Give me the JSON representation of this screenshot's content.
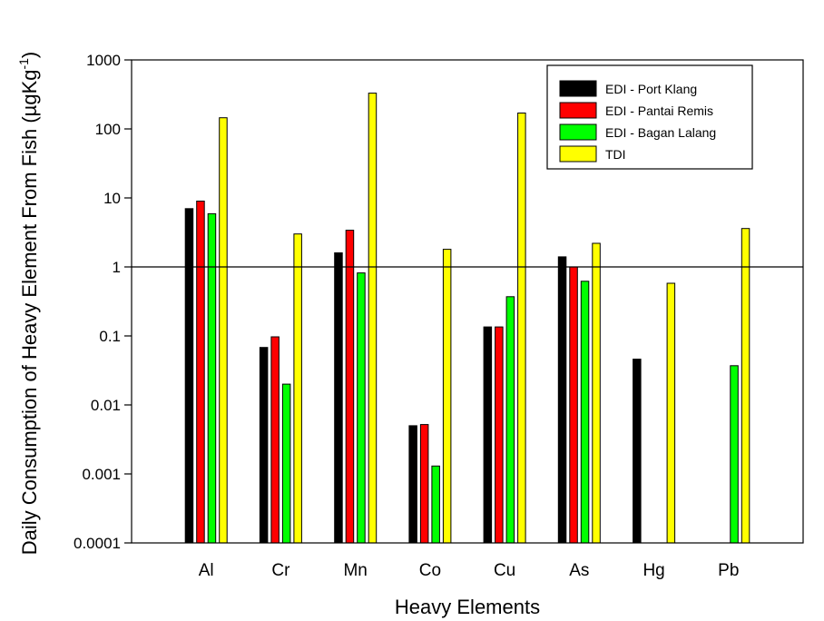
{
  "chart_data": {
    "type": "bar",
    "yscale": "log",
    "ylim": [
      0.0001,
      1000
    ],
    "yticks": [
      "0.0001",
      "0.001",
      "0.01",
      "0.1",
      "1",
      "10",
      "100",
      "1000"
    ],
    "reference_line_y": 1,
    "categories": [
      "Al",
      "Cr",
      "Mn",
      "Co",
      "Cu",
      "As",
      "Hg",
      "Pb"
    ],
    "xlabel": "Heavy Elements",
    "ylabel_main": "Daily Consumption of Heavy Element From Fish (µgKg",
    "ylabel_sup": "-1",
    "ylabel_close": ")",
    "legend_position": "top-right",
    "series": [
      {
        "name": "EDI - Port Klang",
        "color": "#000000",
        "values": [
          7,
          0.068,
          1.6,
          0.005,
          0.135,
          1.4,
          0.046,
          null
        ]
      },
      {
        "name": "EDI - Pantai Remis",
        "color": "#ff0000",
        "values": [
          9,
          0.097,
          3.4,
          0.0052,
          0.135,
          1.0,
          null,
          null
        ]
      },
      {
        "name": "EDI - Bagan Lalang",
        "color": "#00ff00",
        "values": [
          5.9,
          0.02,
          0.82,
          0.0013,
          0.37,
          0.62,
          null,
          0.037
        ]
      },
      {
        "name": "TDI",
        "color": "#ffff00",
        "values": [
          145,
          3.0,
          330,
          1.8,
          170,
          2.2,
          0.58,
          3.6
        ]
      }
    ]
  }
}
